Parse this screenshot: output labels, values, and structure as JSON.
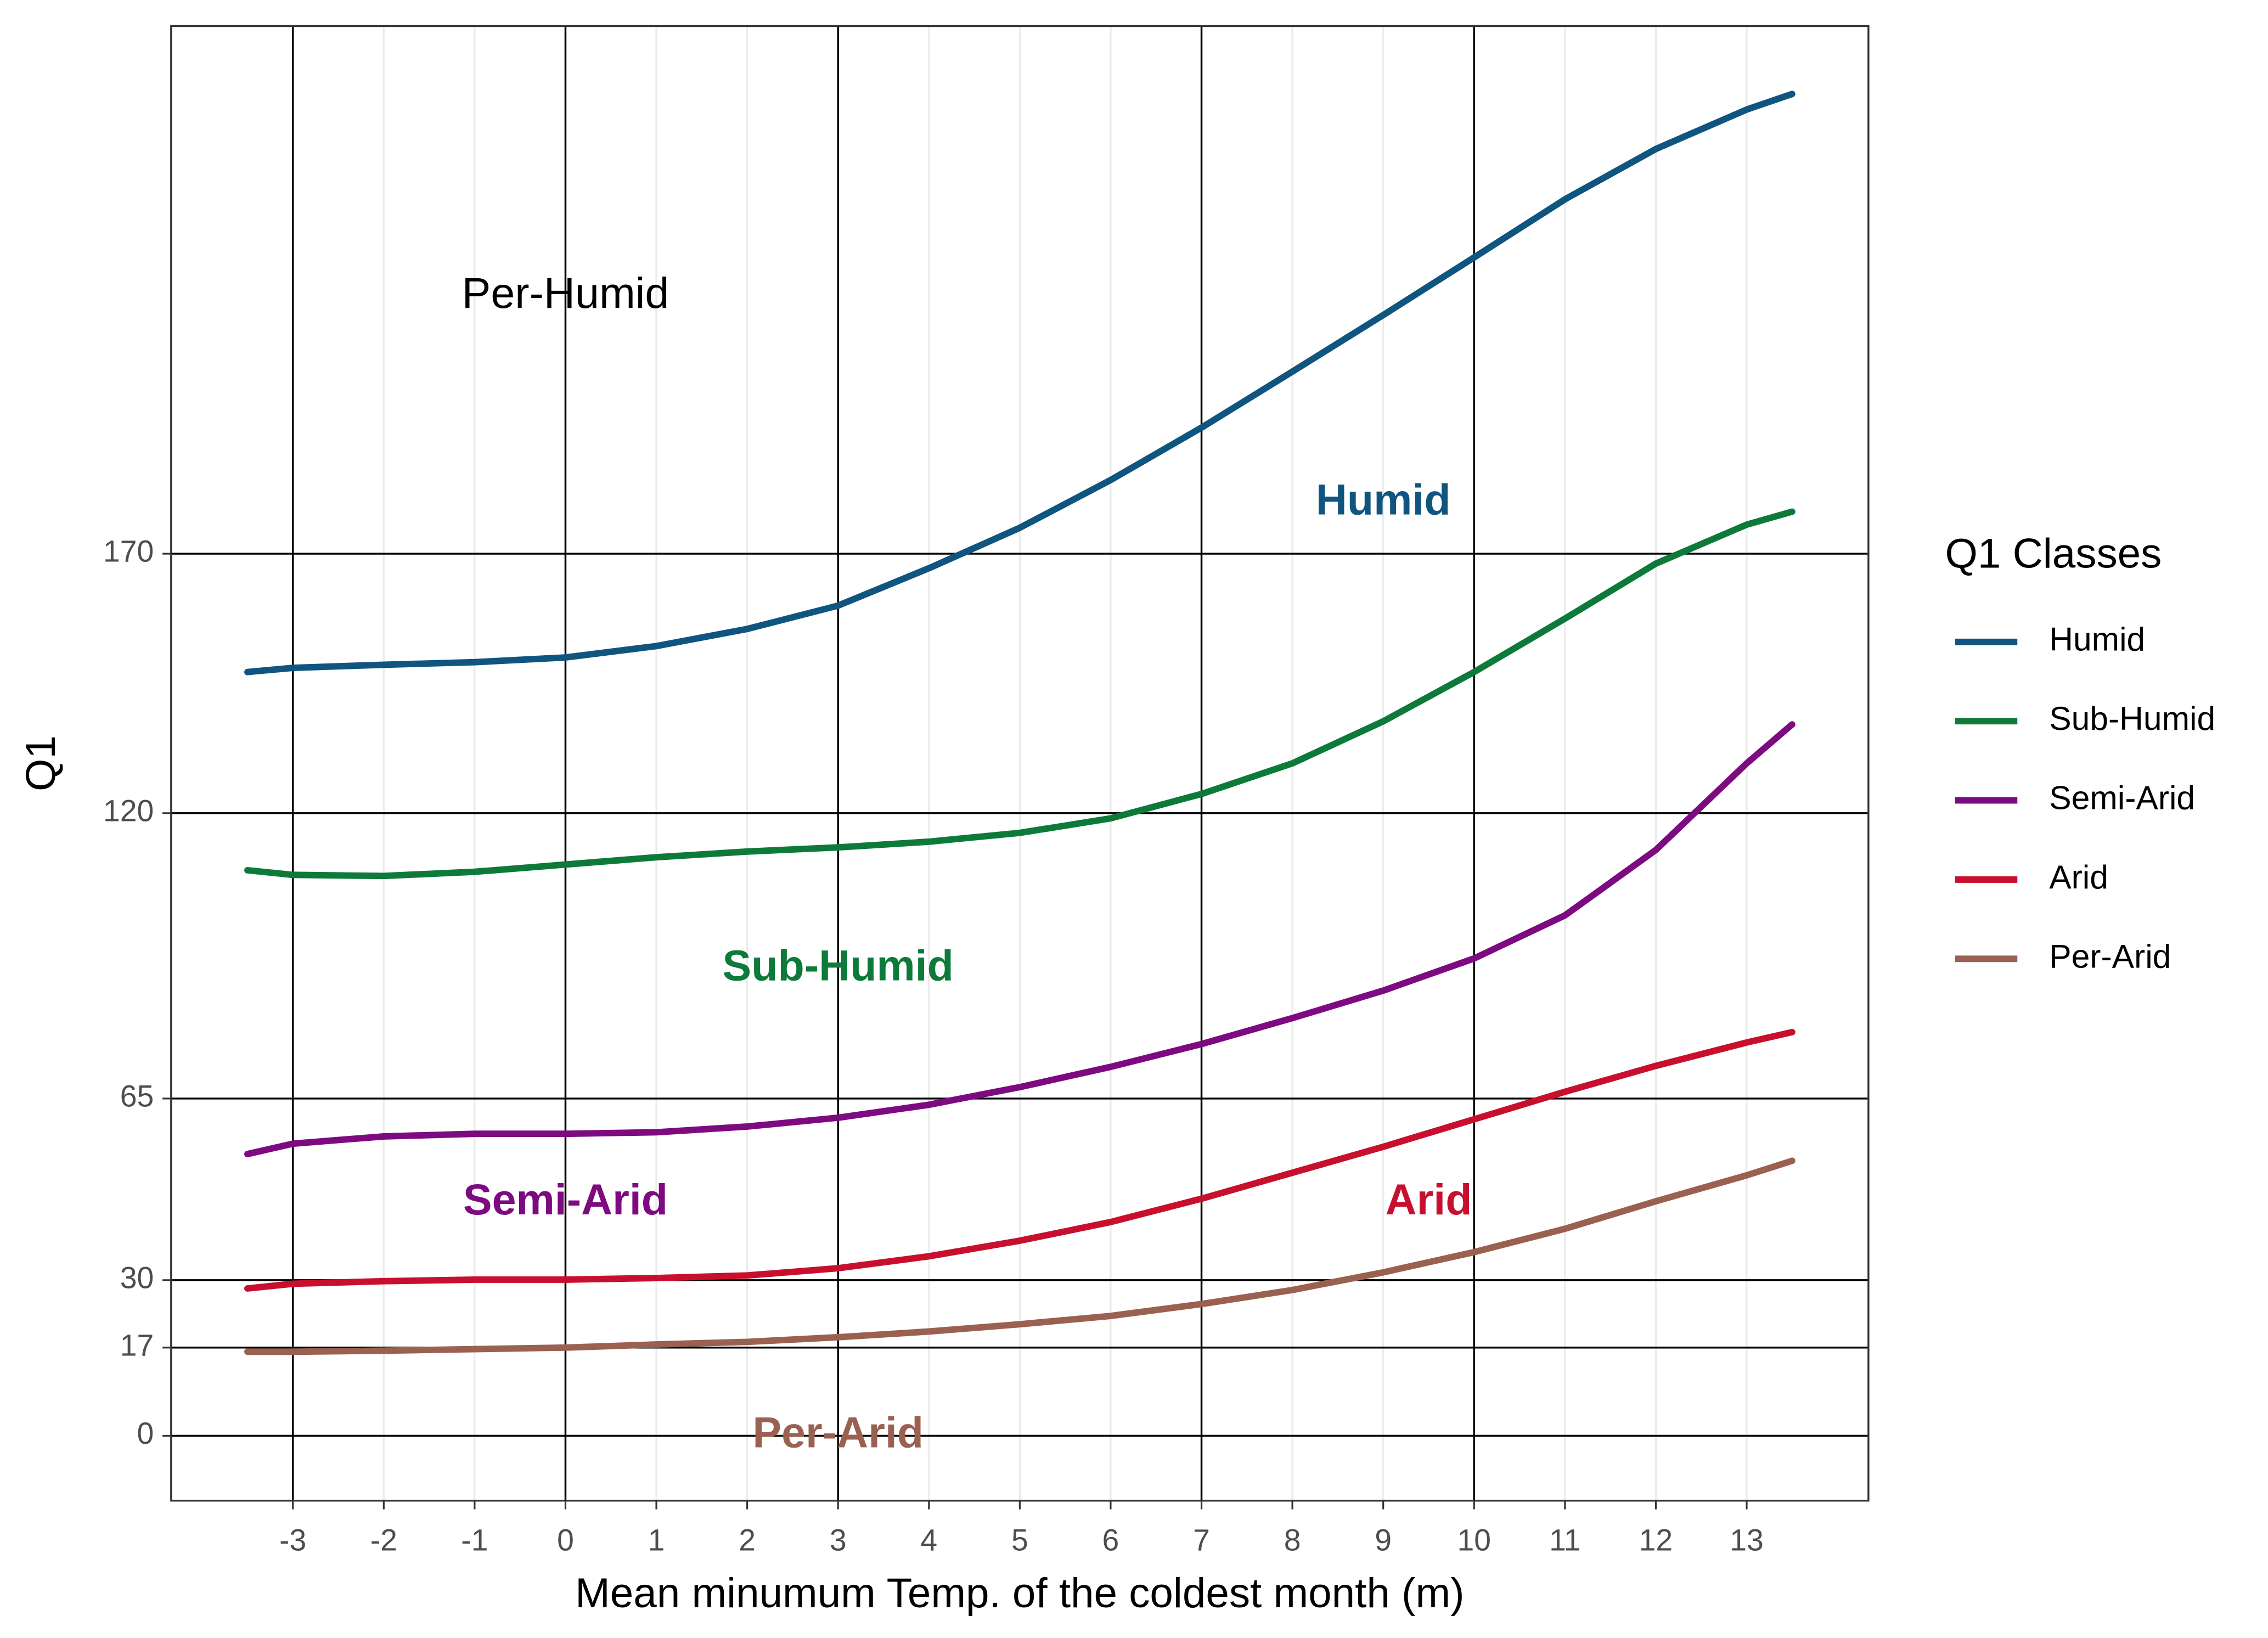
{
  "chart_data": {
    "type": "line",
    "x_label": "Mean minumum Temp. of the coldest month (m)",
    "y_label": "Q1",
    "legend_title": "Q1 Classes",
    "legend_position": "right",
    "x": [
      -3.5,
      -3,
      -2,
      -1,
      0,
      1,
      2,
      3,
      4,
      5,
      6,
      7,
      8,
      9,
      10,
      11,
      12,
      13,
      13.5
    ],
    "series": [
      {
        "name": "Humid",
        "color": "#0f5580",
        "values": [
          147.2,
          148,
          148.6,
          149.1,
          150,
          152.2,
          155.5,
          160,
          167.2,
          175,
          184.2,
          194.3,
          205.1,
          216,
          227.1,
          238.3,
          248,
          255.6,
          258.6
        ]
      },
      {
        "name": "Sub-Humid",
        "color": "#0d7a3a",
        "values": [
          109,
          108.1,
          107.9,
          108.7,
          110.1,
          111.5,
          112.6,
          113.4,
          114.5,
          116.2,
          119,
          123.7,
          129.6,
          137.7,
          147.2,
          157.5,
          168.1,
          175.6,
          178.1
        ]
      },
      {
        "name": "Semi-Arid",
        "color": "#7d0a80",
        "values": [
          54.3,
          56.3,
          57.7,
          58.2,
          58.2,
          58.5,
          59.6,
          61.3,
          63.8,
          67.2,
          71.1,
          75.5,
          80.5,
          85.8,
          92,
          100.3,
          112.9,
          129.6,
          137.1
        ]
      },
      {
        "name": "Arid",
        "color": "#c8102e",
        "values": [
          28.4,
          29.3,
          29.8,
          30.1,
          30.1,
          30.4,
          30.9,
          32.3,
          34.6,
          37.6,
          41.2,
          45.7,
          50.7,
          55.7,
          61,
          66.3,
          71.3,
          75.8,
          77.8
        ]
      },
      {
        "name": "Per-Arid",
        "color": "#9a6150",
        "values": [
          16.2,
          16.2,
          16.4,
          16.7,
          17,
          17.6,
          18.1,
          19,
          20.1,
          21.5,
          23.1,
          25.4,
          28.1,
          31.5,
          35.4,
          39.9,
          45.2,
          50.2,
          53
        ]
      }
    ],
    "annotations": [
      {
        "text": "Per-Humid",
        "x": 0,
        "y": 219.6,
        "color": "#000000",
        "bold": false
      },
      {
        "text": "Humid",
        "x": 9,
        "y": 179.8,
        "color": "#0f5580",
        "bold": true
      },
      {
        "text": "Sub-Humid",
        "x": 3,
        "y": 90,
        "color": "#0d7a3a",
        "bold": true
      },
      {
        "text": "Semi-Arid",
        "x": 0,
        "y": 44.9,
        "color": "#7d0a80",
        "bold": true
      },
      {
        "text": "Arid",
        "x": 9.5,
        "y": 44.9,
        "color": "#c8102e",
        "bold": true
      },
      {
        "text": "Per-Arid",
        "x": 3,
        "y": 0,
        "color": "#9a6150",
        "bold": true
      }
    ],
    "xlim": [
      -4.34,
      14.34
    ],
    "ylim": [
      -12.5,
      271.7
    ],
    "xticks": [
      -3,
      -2,
      -1,
      0,
      1,
      2,
      3,
      4,
      5,
      6,
      7,
      8,
      9,
      10,
      11,
      12,
      13
    ],
    "yticks": [
      0,
      17,
      30,
      65,
      120,
      170
    ],
    "x_reference_lines": [
      -3,
      0,
      3,
      7,
      10
    ],
    "grid": true
  }
}
